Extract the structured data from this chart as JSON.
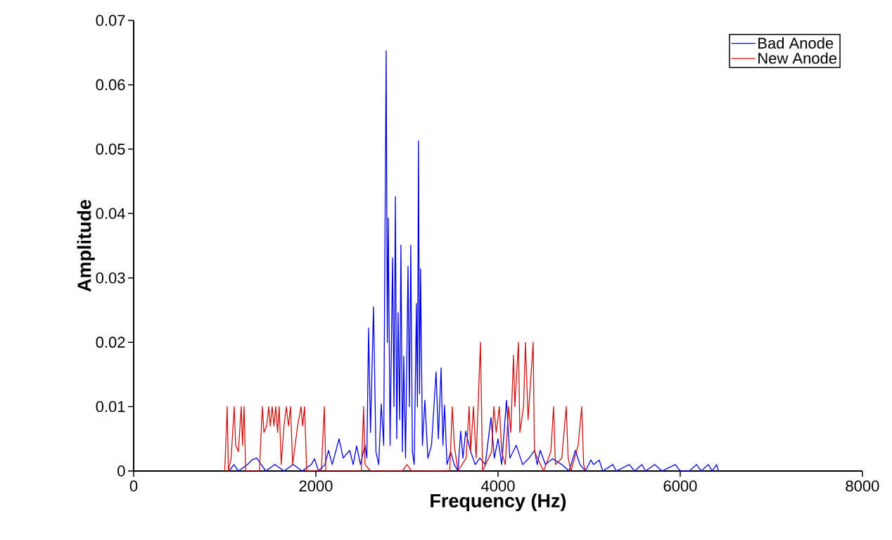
{
  "chart_data": {
    "type": "line",
    "xlabel": "Frequency (Hz)",
    "ylabel": "Amplitude",
    "xlim": [
      0,
      8000
    ],
    "ylim": [
      0,
      0.07
    ],
    "xticks": [
      0,
      2000,
      4000,
      6000,
      8000
    ],
    "yticks": [
      0,
      0.01,
      0.02,
      0.03,
      0.04,
      0.05,
      0.06,
      0.07
    ],
    "grid": false,
    "legend": "top right",
    "marker": "none",
    "line_style": "solid",
    "series": [
      {
        "name": "Bad Anode",
        "color": "#0000e0",
        "x": [
          1050,
          1100,
          1150,
          1250,
          1297,
          1350,
          1400,
          1450,
          1550,
          1650,
          1750,
          1850,
          1950,
          1985,
          2030,
          2100,
          2139,
          2180,
          2255,
          2300,
          2371,
          2410,
          2448,
          2490,
          2540,
          2560,
          2579,
          2600,
          2633,
          2660,
          2690,
          2718,
          2745,
          2772,
          2785,
          2795,
          2815,
          2842,
          2858,
          2873,
          2888,
          2903,
          2920,
          2934,
          2950,
          2965,
          2985,
          3012,
          3027,
          3042,
          3060,
          3080,
          3104,
          3115,
          3127,
          3138,
          3150,
          3170,
          3197,
          3230,
          3270,
          3320,
          3345,
          3375,
          3395,
          3413,
          3440,
          3480,
          3520,
          3560,
          3590,
          3615,
          3645,
          3700,
          3750,
          3800,
          3860,
          3923,
          3960,
          4000,
          4040,
          4093,
          4130,
          4200,
          4270,
          4340,
          4402,
          4430,
          4463,
          4520,
          4600,
          4700,
          4780,
          4849,
          4900,
          4960,
          5019,
          5050,
          5110,
          5150,
          5260,
          5300,
          5440,
          5500,
          5580,
          5620,
          5720,
          5800,
          5946,
          6000,
          6100,
          6180,
          6230,
          6309,
          6350,
          6400,
          6420
        ],
        "values": [
          0,
          0.001,
          0,
          0.001,
          0.0017,
          0.002,
          0.001,
          0,
          0.001,
          0,
          0.001,
          0,
          0.001,
          0.0019,
          0,
          0.001,
          0.0032,
          0.001,
          0.005,
          0.002,
          0.0032,
          0.001,
          0.0039,
          0.001,
          0.004,
          0.002,
          0.0222,
          0.006,
          0.0255,
          0.003,
          0.001,
          0.0104,
          0.004,
          0.0653,
          0.02,
          0.0393,
          0.004,
          0.0331,
          0.01,
          0.0426,
          0.005,
          0.0246,
          0.008,
          0.0351,
          0.003,
          0.0178,
          0.002,
          0.0318,
          0.01,
          0.0351,
          0.003,
          0.001,
          0.026,
          0.01,
          0.0513,
          0.012,
          0.0314,
          0.004,
          0.011,
          0.002,
          0.004,
          0.0154,
          0.005,
          0.016,
          0.004,
          0.0102,
          0.001,
          0.003,
          0.001,
          0,
          0.0062,
          0.002,
          0.0062,
          0.003,
          0.001,
          0.002,
          0.001,
          0.0083,
          0.002,
          0.005,
          0.001,
          0.011,
          0.002,
          0.004,
          0.001,
          0.002,
          0.0032,
          0.001,
          0.0032,
          0.001,
          0.0019,
          0.001,
          0,
          0.0032,
          0.001,
          0,
          0.0017,
          0.001,
          0.0017,
          0,
          0.001,
          0,
          0.001,
          0,
          0.001,
          0,
          0.001,
          0,
          0.001,
          0,
          0,
          0.001,
          0,
          0.001,
          0,
          0.001,
          0
        ]
      },
      {
        "name": "New Anode",
        "color": "#d01010",
        "x": [
          1000,
          1027,
          1040,
          1070,
          1104,
          1120,
          1150,
          1181,
          1195,
          1212,
          1230,
          1380,
          1413,
          1430,
          1460,
          1483,
          1500,
          1521,
          1540,
          1560,
          1580,
          1598,
          1620,
          1650,
          1676,
          1700,
          1722,
          1745,
          1800,
          1838,
          1855,
          1876,
          1900,
          2060,
          2093,
          2110,
          2500,
          2525,
          2540,
          2600,
          2950,
          3000,
          3050,
          3470,
          3498,
          3520,
          3560,
          3650,
          3683,
          3700,
          3730,
          3760,
          3807,
          3830,
          3930,
          3954,
          3980,
          4015,
          4040,
          4080,
          4116,
          4140,
          4170,
          4185,
          4224,
          4240,
          4280,
          4301,
          4330,
          4386,
          4400,
          4500,
          4580,
          4610,
          4630,
          4700,
          4749,
          4770,
          4800,
          4880,
          4919,
          4940,
          4960
        ],
        "values": [
          0,
          0.01,
          0,
          0.002,
          0.01,
          0.004,
          0.003,
          0.01,
          0.004,
          0.01,
          0,
          0,
          0.01,
          0.006,
          0.007,
          0.01,
          0.007,
          0.01,
          0.007,
          0.01,
          0.006,
          0.01,
          0.001,
          0.007,
          0.01,
          0.007,
          0.01,
          0.001,
          0.007,
          0.01,
          0.007,
          0.01,
          0,
          0,
          0.01,
          0,
          0,
          0.01,
          0.001,
          0,
          0,
          0.001,
          0,
          0,
          0.01,
          0.004,
          0,
          0.002,
          0.01,
          0.003,
          0.01,
          0.002,
          0.02,
          0,
          0.003,
          0.01,
          0.006,
          0.01,
          0.003,
          0.001,
          0.01,
          0.006,
          0.018,
          0.01,
          0.02,
          0.006,
          0.01,
          0.02,
          0.008,
          0.02,
          0.003,
          0,
          0.003,
          0.01,
          0.001,
          0.002,
          0.01,
          0.002,
          0,
          0.004,
          0.01,
          0.001,
          0
        ]
      }
    ]
  }
}
